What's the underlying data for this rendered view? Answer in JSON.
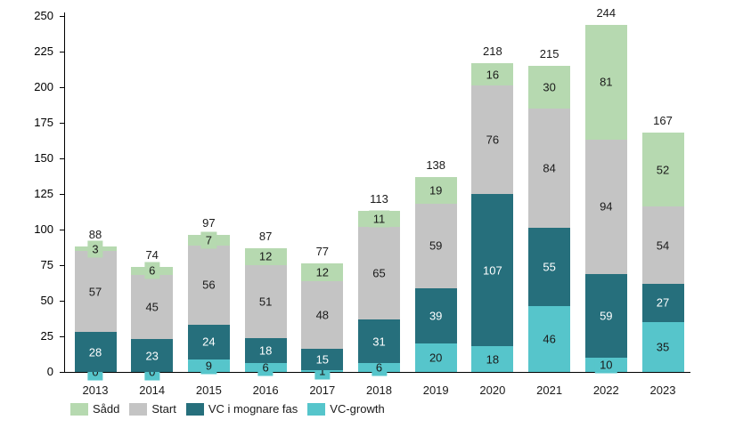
{
  "chart_data": {
    "type": "bar",
    "variant": "stacked",
    "title": "",
    "xlabel": "",
    "ylabel": "",
    "grid": false,
    "categories": [
      "2013",
      "2014",
      "2015",
      "2016",
      "2017",
      "2018",
      "2019",
      "2020",
      "2021",
      "2022",
      "2023"
    ],
    "series": [
      {
        "name": "VC-growth",
        "color": "#56c5cb",
        "label_color": "#1a1a1a",
        "values": [
          0,
          0,
          9,
          6,
          1,
          6,
          20,
          18,
          46,
          10,
          35
        ]
      },
      {
        "name": "VC i mognare fas",
        "color": "#266f7c",
        "label_color": "#ffffff",
        "values": [
          28,
          23,
          24,
          18,
          15,
          31,
          39,
          107,
          55,
          59,
          27
        ]
      },
      {
        "name": "Start",
        "color": "#c4c4c4",
        "label_color": "#1a1a1a",
        "values": [
          57,
          45,
          56,
          51,
          48,
          65,
          59,
          76,
          84,
          94,
          54
        ]
      },
      {
        "name": "Sådd",
        "color": "#b6d9b0",
        "label_color": "#1a1a1a",
        "values": [
          3,
          6,
          7,
          12,
          12,
          11,
          19,
          16,
          30,
          81,
          52
        ]
      }
    ],
    "totals": [
      88,
      74,
      97,
      87,
      77,
      113,
      138,
      218,
      215,
      244,
      167
    ],
    "y_axis": {
      "min": 0,
      "max": 250,
      "step": 25,
      "ticks": [
        "0",
        "25",
        "50",
        "75",
        "100",
        "125",
        "150",
        "175",
        "200",
        "225",
        "250"
      ]
    },
    "ylim": [
      0,
      250
    ],
    "legend": [
      "Sådd",
      "Start",
      "VC i mognare fas",
      "VC-growth"
    ],
    "legend_position": "bottom-left",
    "axis_color": "#000000"
  }
}
